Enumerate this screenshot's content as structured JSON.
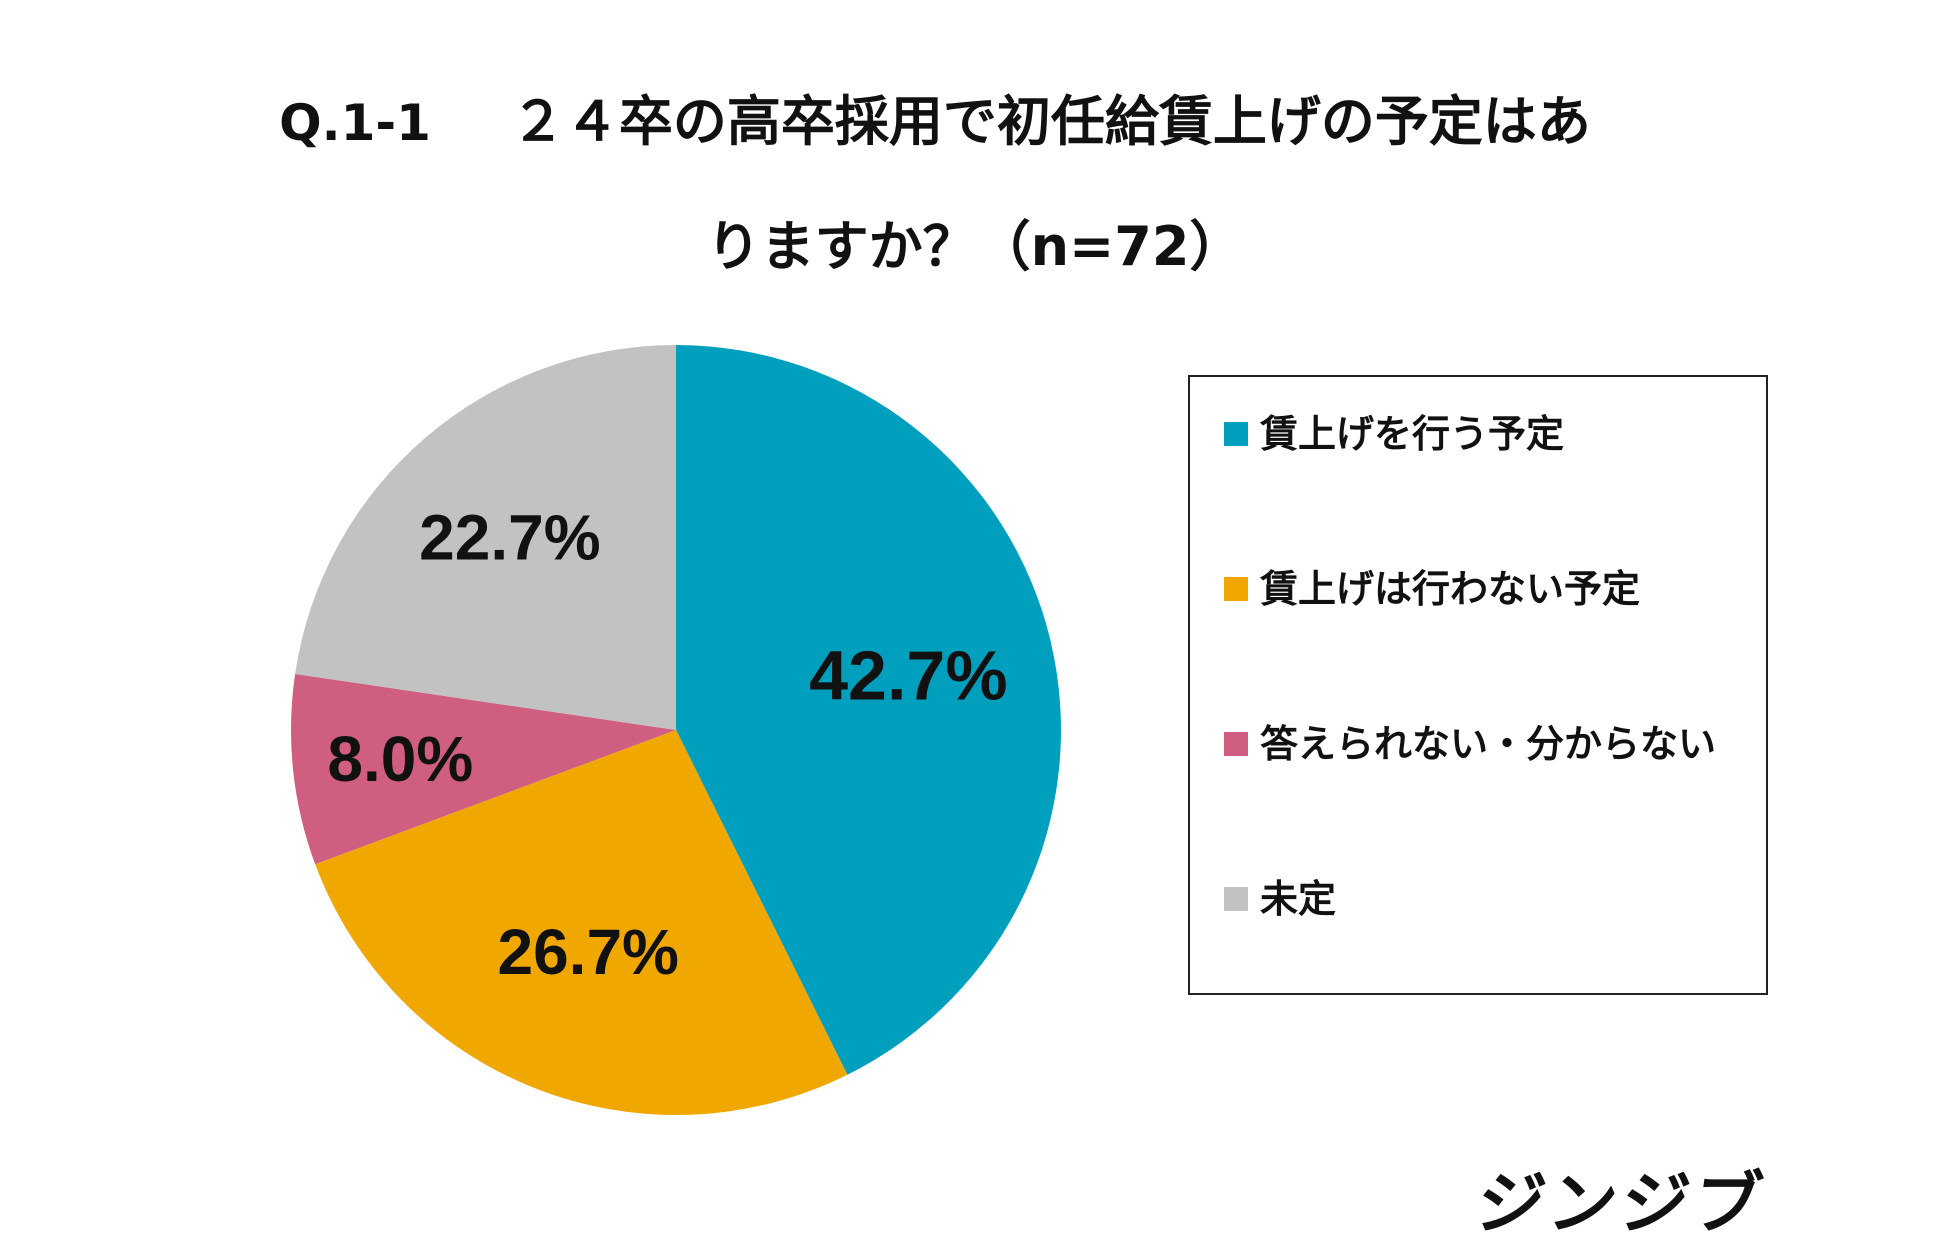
{
  "title": {
    "qnum": "Q.1-1",
    "line1": "２４卒の高卒採用で初任給賃上げの予定はあ",
    "line2": "りますか？（n=72）"
  },
  "chart_data": {
    "type": "pie",
    "title": "Q.1-1 ２４卒の高卒採用で初任給賃上げの予定はありますか？（n=72）",
    "categories": [
      "賃上げを行う予定",
      "賃上げは行わない予定",
      "答えられない・分からない",
      "未定"
    ],
    "values": [
      42.7,
      26.7,
      8.0,
      22.7
    ],
    "labels": [
      "42.7%",
      "26.7%",
      "8.0%",
      "22.7%"
    ],
    "colors": [
      "#009FBE",
      "#F0A800",
      "#D05E80",
      "#C2C2C2"
    ],
    "start": "12 o'clock",
    "direction": "clockwise",
    "legend_position": "right"
  },
  "legend": {
    "items": [
      {
        "label": "賃上げを行う予定"
      },
      {
        "label": "賃上げは行わない予定"
      },
      {
        "label": "答えられない・分からない"
      },
      {
        "label": "未定"
      }
    ]
  },
  "brand": "ジンジブ"
}
